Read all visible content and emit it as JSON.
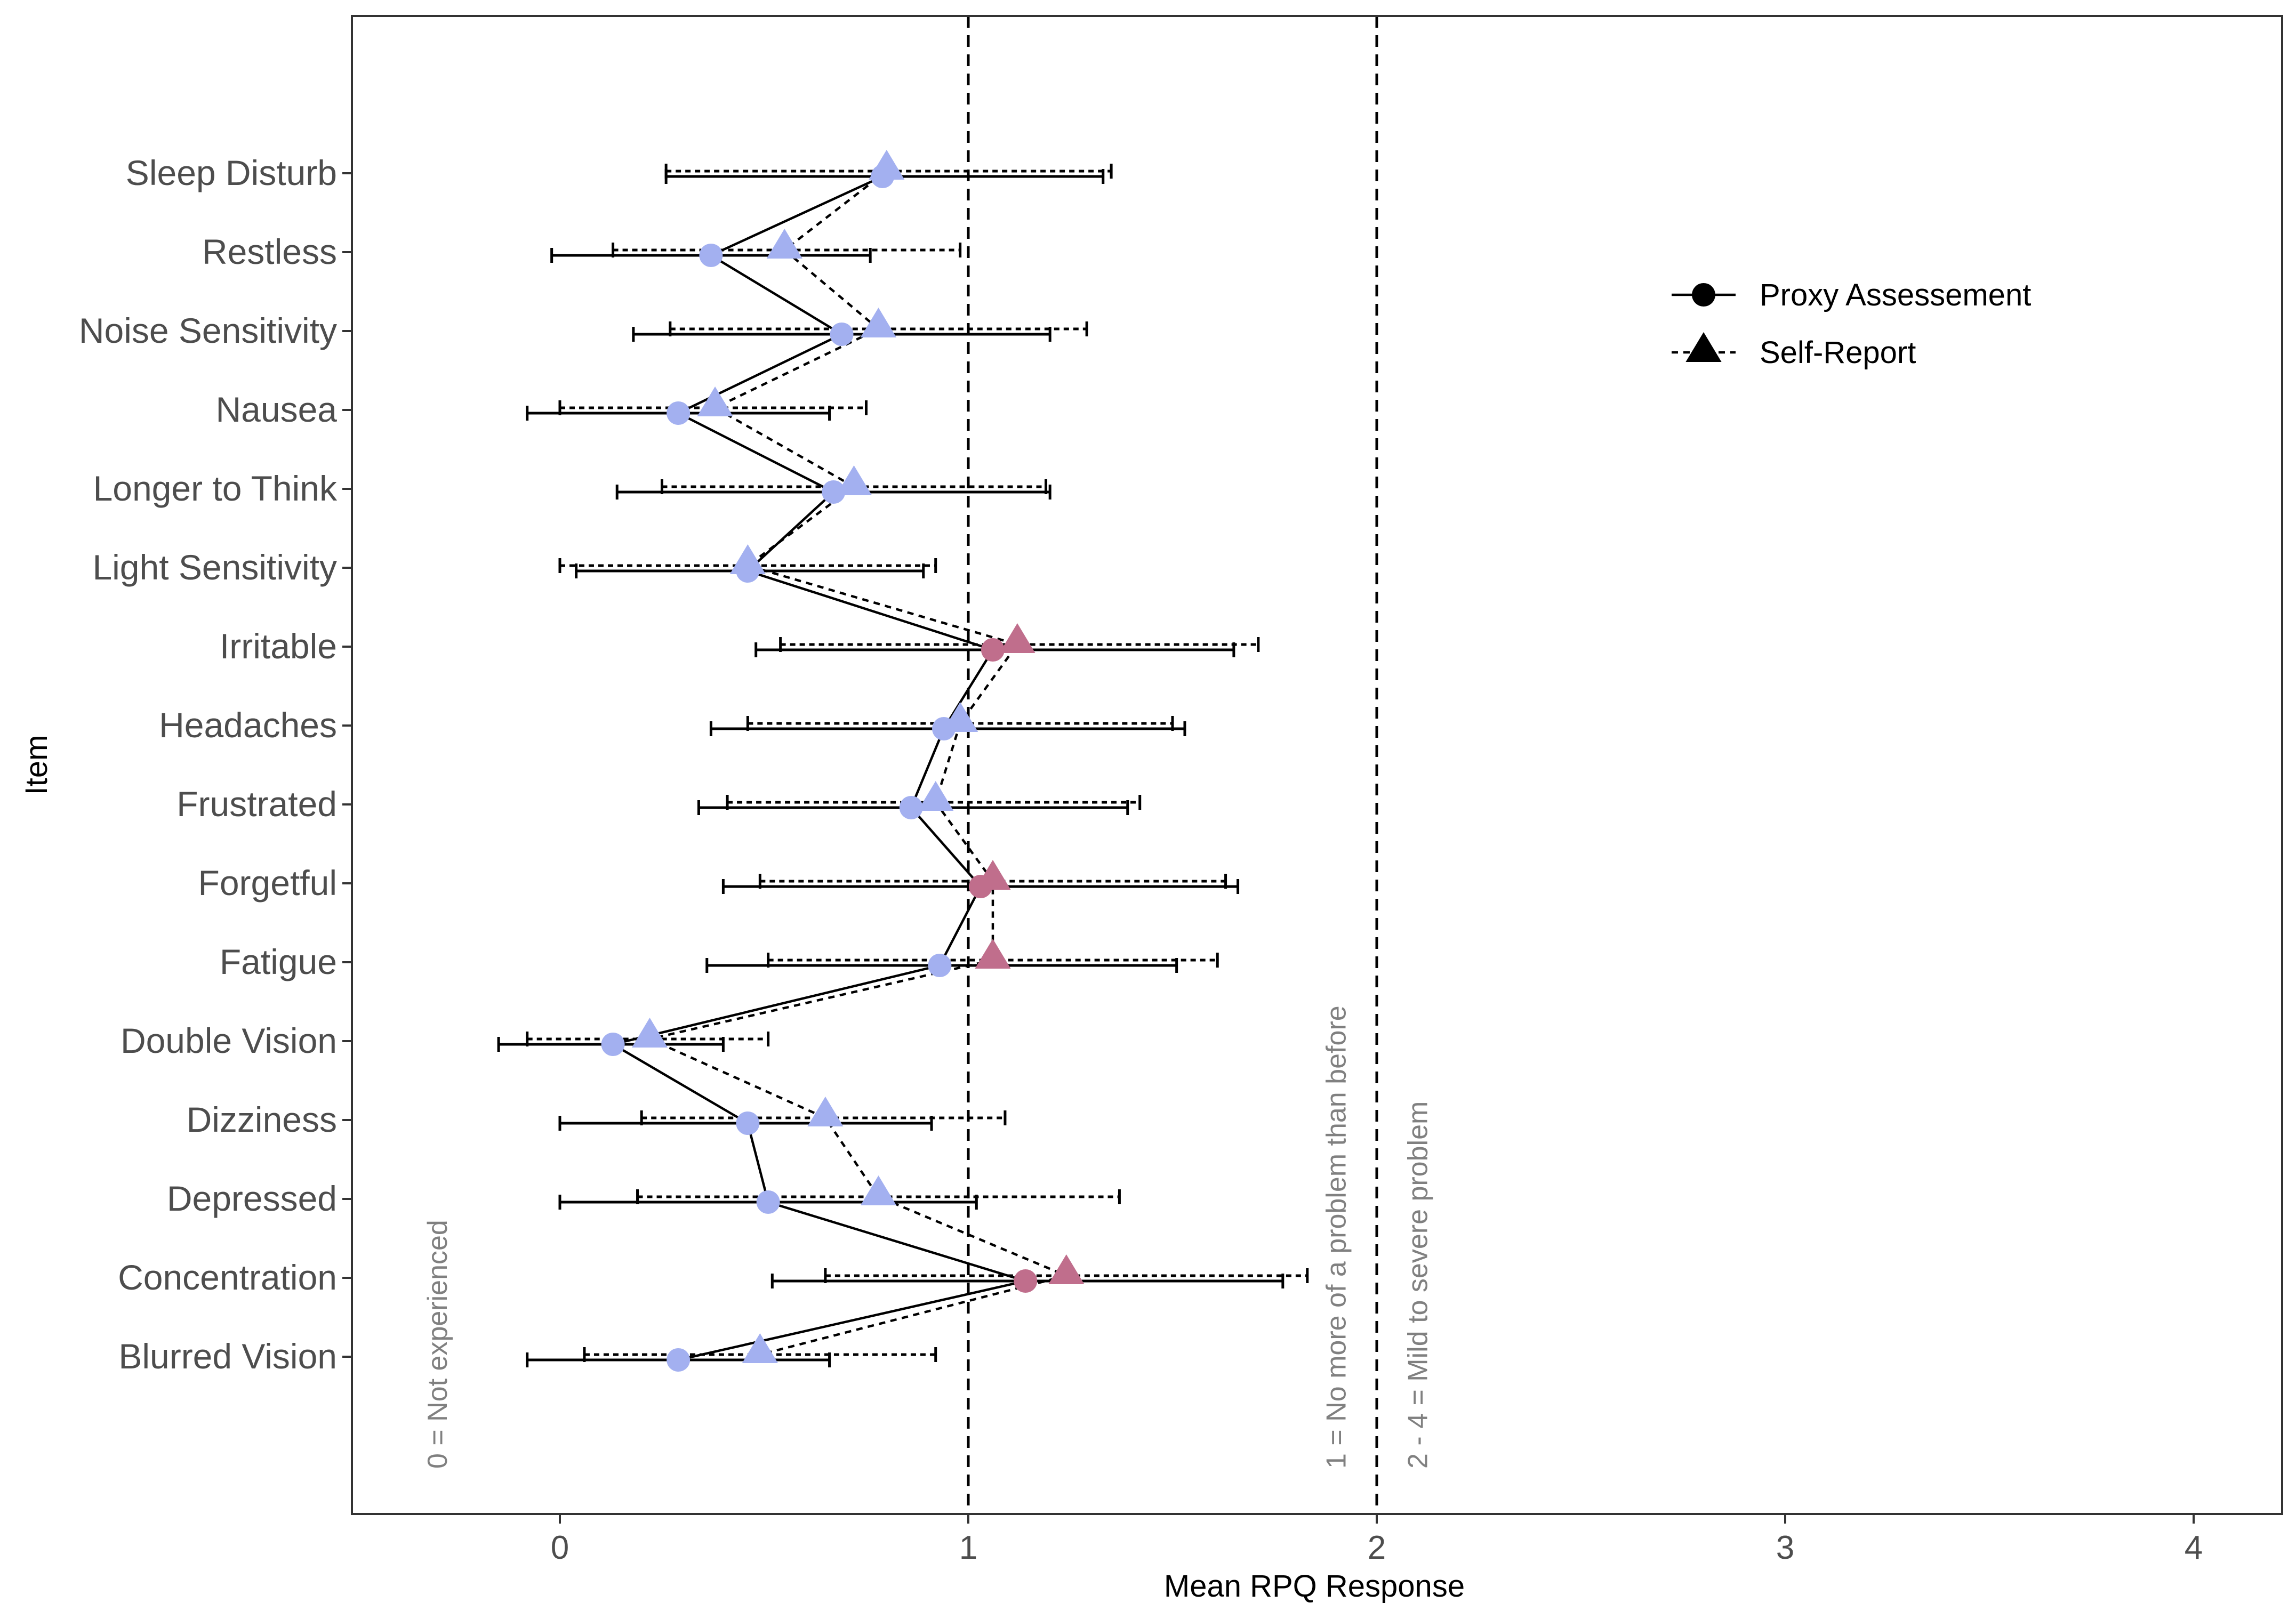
{
  "chart_data": {
    "type": "dot-errorbar",
    "xlabel": "Mean RPQ Response",
    "ylabel": "Item",
    "xlim": [
      -0.5,
      4.2
    ],
    "xticks": [
      0,
      1,
      2,
      3,
      4
    ],
    "xtick_labels": [
      "0",
      "1",
      "2",
      "3",
      "4"
    ],
    "grid": false,
    "legend_position": "top-right",
    "reference_lines": [
      1,
      2
    ],
    "annotations": [
      {
        "text": "0 = Not experienced",
        "x": -0.3
      },
      {
        "text": "1 = No more of a problem than before",
        "x": 1.9
      },
      {
        "text": "2 - 4 = Mild to severe problem",
        "x": 2.1
      }
    ],
    "colors": {
      "low": "#a3b0f0",
      "high": "#c06e8c",
      "line": "#000000"
    },
    "series": [
      {
        "name": "Proxy Assessement",
        "marker": "circle",
        "line": "solid",
        "points": [
          {
            "item": "Sleep Disturb",
            "mean": 0.79,
            "lo": 0.26,
            "hi": 1.33,
            "color": "low"
          },
          {
            "item": "Restless",
            "mean": 0.37,
            "lo": -0.02,
            "hi": 0.76,
            "color": "low"
          },
          {
            "item": "Noise Sensitivity",
            "mean": 0.69,
            "lo": 0.18,
            "hi": 1.2,
            "color": "low"
          },
          {
            "item": "Nausea",
            "mean": 0.29,
            "lo": -0.08,
            "hi": 0.66,
            "color": "low"
          },
          {
            "item": "Longer to Think",
            "mean": 0.67,
            "lo": 0.14,
            "hi": 1.2,
            "color": "low"
          },
          {
            "item": "Light Sensitivity",
            "mean": 0.46,
            "lo": 0.04,
            "hi": 0.89,
            "color": "low"
          },
          {
            "item": "Irritable",
            "mean": 1.06,
            "lo": 0.48,
            "hi": 1.65,
            "color": "high"
          },
          {
            "item": "Headaches",
            "mean": 0.94,
            "lo": 0.37,
            "hi": 1.53,
            "color": "low"
          },
          {
            "item": "Frustrated",
            "mean": 0.86,
            "lo": 0.34,
            "hi": 1.39,
            "color": "low"
          },
          {
            "item": "Forgetful",
            "mean": 1.03,
            "lo": 0.4,
            "hi": 1.66,
            "color": "high"
          },
          {
            "item": "Fatigue",
            "mean": 0.93,
            "lo": 0.36,
            "hi": 1.51,
            "color": "low"
          },
          {
            "item": "Double Vision",
            "mean": 0.13,
            "lo": -0.15,
            "hi": 0.4,
            "color": "low"
          },
          {
            "item": "Dizziness",
            "mean": 0.46,
            "lo": 0.0,
            "hi": 0.91,
            "color": "low"
          },
          {
            "item": "Depressed",
            "mean": 0.51,
            "lo": 0.0,
            "hi": 1.02,
            "color": "low"
          },
          {
            "item": "Concentration",
            "mean": 1.14,
            "lo": 0.52,
            "hi": 1.77,
            "color": "high"
          },
          {
            "item": "Blurred Vision",
            "mean": 0.29,
            "lo": -0.08,
            "hi": 0.66,
            "color": "low"
          }
        ]
      },
      {
        "name": "Self-Report",
        "marker": "triangle",
        "line": "dashed",
        "points": [
          {
            "item": "Sleep Disturb",
            "mean": 0.8,
            "lo": 0.26,
            "hi": 1.35,
            "color": "low"
          },
          {
            "item": "Restless",
            "mean": 0.55,
            "lo": 0.13,
            "hi": 0.98,
            "color": "low"
          },
          {
            "item": "Noise Sensitivity",
            "mean": 0.78,
            "lo": 0.27,
            "hi": 1.29,
            "color": "low"
          },
          {
            "item": "Nausea",
            "mean": 0.38,
            "lo": 0.0,
            "hi": 0.75,
            "color": "low"
          },
          {
            "item": "Longer to Think",
            "mean": 0.72,
            "lo": 0.25,
            "hi": 1.19,
            "color": "low"
          },
          {
            "item": "Light Sensitivity",
            "mean": 0.46,
            "lo": 0.0,
            "hi": 0.92,
            "color": "low"
          },
          {
            "item": "Irritable",
            "mean": 1.12,
            "lo": 0.54,
            "hi": 1.71,
            "color": "high"
          },
          {
            "item": "Headaches",
            "mean": 0.98,
            "lo": 0.46,
            "hi": 1.5,
            "color": "low"
          },
          {
            "item": "Frustrated",
            "mean": 0.92,
            "lo": 0.41,
            "hi": 1.42,
            "color": "low"
          },
          {
            "item": "Forgetful",
            "mean": 1.06,
            "lo": 0.49,
            "hi": 1.63,
            "color": "high"
          },
          {
            "item": "Fatigue",
            "mean": 1.06,
            "lo": 0.51,
            "hi": 1.61,
            "color": "high"
          },
          {
            "item": "Double Vision",
            "mean": 0.22,
            "lo": -0.08,
            "hi": 0.51,
            "color": "low"
          },
          {
            "item": "Dizziness",
            "mean": 0.65,
            "lo": 0.2,
            "hi": 1.09,
            "color": "low"
          },
          {
            "item": "Depressed",
            "mean": 0.78,
            "lo": 0.19,
            "hi": 1.37,
            "color": "low"
          },
          {
            "item": "Concentration",
            "mean": 1.24,
            "lo": 0.65,
            "hi": 1.83,
            "color": "high"
          },
          {
            "item": "Blurred Vision",
            "mean": 0.49,
            "lo": 0.06,
            "hi": 0.92,
            "color": "low"
          }
        ]
      }
    ]
  }
}
